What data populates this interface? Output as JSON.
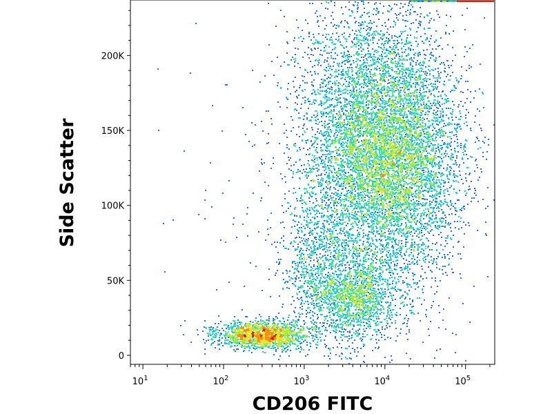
{
  "chart_data": {
    "type": "scatter",
    "style": "density-pseudocolor",
    "title": "",
    "xlabel": "CD206 FITC",
    "ylabel": "Side Scatter",
    "x_scale": "log",
    "xlim": [
      7,
      230000
    ],
    "ylim": [
      -6000,
      237000
    ],
    "x_ticks": [
      {
        "value": 10,
        "base": "10",
        "exp": "1"
      },
      {
        "value": 100,
        "base": "10",
        "exp": "2"
      },
      {
        "value": 1000,
        "base": "10",
        "exp": "3"
      },
      {
        "value": 10000,
        "base": "10",
        "exp": "4"
      },
      {
        "value": 100000,
        "base": "10",
        "exp": "5"
      }
    ],
    "y_ticks": [
      {
        "value": 0,
        "label": "0"
      },
      {
        "value": 50000,
        "label": "50K"
      },
      {
        "value": 100000,
        "label": "100K"
      },
      {
        "value": 150000,
        "label": "150K"
      },
      {
        "value": 200000,
        "label": "200K"
      }
    ],
    "grid": false,
    "legend": "none",
    "density_colors": [
      "#0000cc",
      "#1e6cff",
      "#00c8ff",
      "#2ee6a0",
      "#a6ee2c",
      "#f0e21e",
      "#ff8c0a",
      "#e81a0a"
    ],
    "populations": [
      {
        "x_center": 15000,
        "x_log_spread": 0.42,
        "y_center": 132000,
        "y_spread": 38000,
        "weight": 0.3
      },
      {
        "x_center": 6000,
        "x_log_spread": 0.45,
        "y_center": 140000,
        "y_spread": 50000,
        "weight": 0.35
      },
      {
        "x_center": 4500,
        "x_log_spread": 0.25,
        "y_center": 38000,
        "y_spread": 14000,
        "weight": 0.09
      },
      {
        "x_center": 300,
        "x_log_spread": 0.28,
        "y_center": 14000,
        "y_spread": 4500,
        "weight": 0.12
      },
      {
        "x_center": 1500,
        "x_log_spread": 0.25,
        "y_center": 55000,
        "y_spread": 25000,
        "weight": 0.06
      },
      {
        "x_center": 1500,
        "x_log_spread": 1.1,
        "y_center": 110000,
        "y_spread": 70000,
        "weight": 0.01
      }
    ],
    "saturated_top_edge": {
      "x_from": 20000,
      "x_to": 230000,
      "y": 236000
    }
  }
}
